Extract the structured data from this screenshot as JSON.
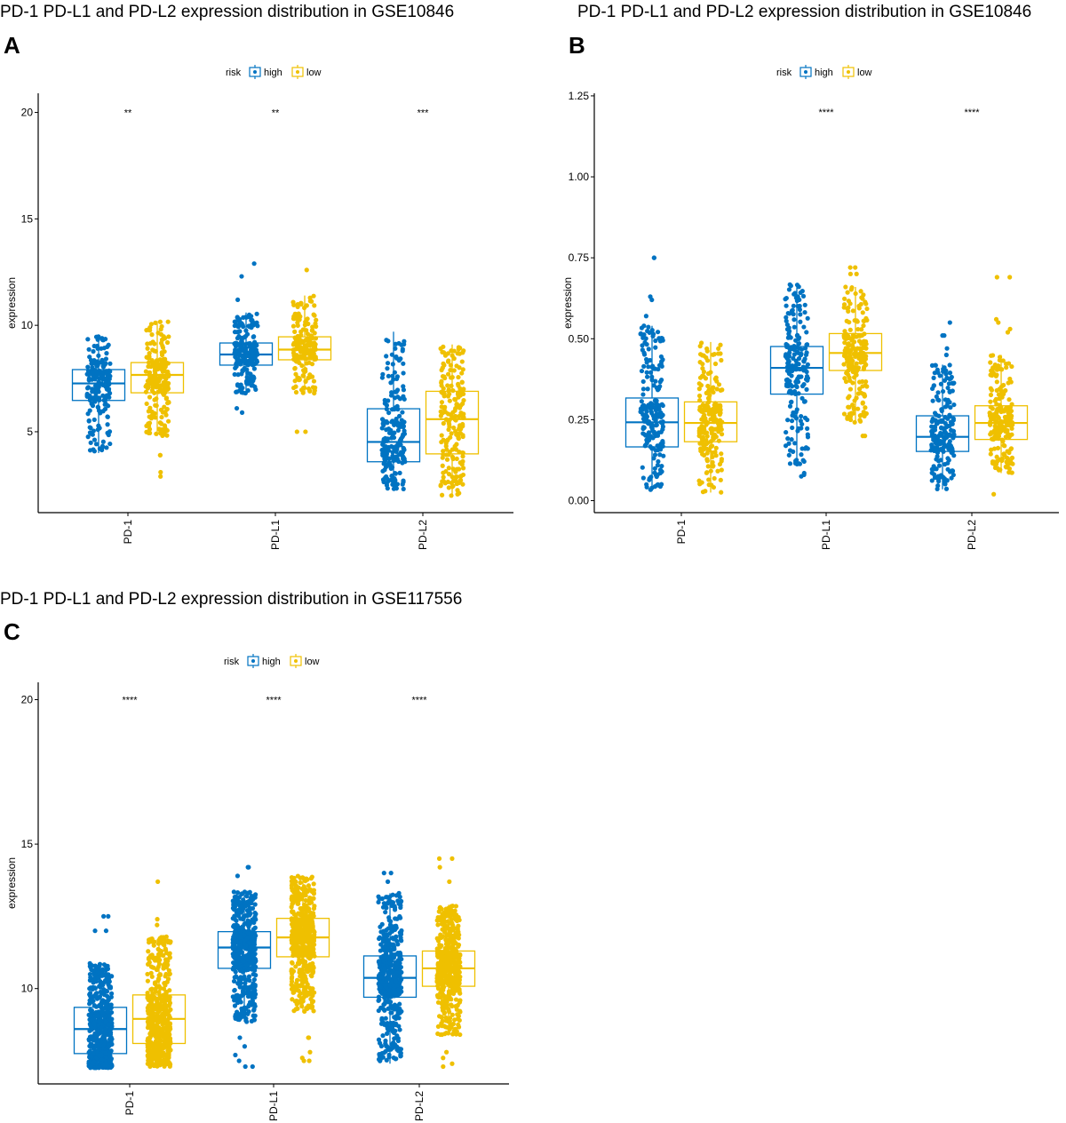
{
  "colors": {
    "high": "#0073C2",
    "low": "#EFC000",
    "axis": "#000000"
  },
  "legend": {
    "title": "risk",
    "entries": [
      "high",
      "low"
    ]
  },
  "chart_data": [
    {
      "panel_label": "A",
      "type": "box",
      "title": "PD-1 PD-L1 and PD-L2 expression distribution in GSE10846",
      "ylabel": "expression",
      "xlabel": "",
      "ylim": [
        1.2,
        20.9
      ],
      "yticks": [
        5,
        10,
        15,
        20
      ],
      "grid": false,
      "legend_position": "top",
      "categories": [
        "PD-1",
        "PD-L1",
        "PD-L2"
      ],
      "significance": [
        "**",
        "**",
        "***"
      ],
      "series": [
        {
          "name": "high",
          "boxes": [
            {
              "whisker_low": 4.0,
              "q1": 6.47,
              "median": 7.27,
              "q3": 7.92,
              "whisker_high": 9.5,
              "outliers": []
            },
            {
              "whisker_low": 6.8,
              "q1": 8.13,
              "median": 8.63,
              "q3": 9.17,
              "whisker_high": 10.6,
              "outliers": [
                12.9,
                12.3,
                11.2,
                6.1,
                5.9
              ]
            },
            {
              "whisker_low": 2.3,
              "q1": 3.59,
              "median": 4.52,
              "q3": 6.08,
              "whisker_high": 9.7,
              "outliers": []
            }
          ]
        },
        {
          "name": "low",
          "boxes": [
            {
              "whisker_low": 4.8,
              "q1": 6.83,
              "median": 7.67,
              "q3": 8.25,
              "whisker_high": 10.2,
              "outliers": [
                3.9,
                3.9,
                3.1,
                2.9
              ]
            },
            {
              "whisker_low": 6.8,
              "q1": 8.38,
              "median": 8.86,
              "q3": 9.46,
              "whisker_high": 11.4,
              "outliers": [
                12.6,
                5.0,
                5.0
              ]
            },
            {
              "whisker_low": 2.0,
              "q1": 3.96,
              "median": 5.59,
              "q3": 6.9,
              "whisker_high": 9.1,
              "outliers": []
            }
          ]
        }
      ]
    },
    {
      "panel_label": "B",
      "type": "box",
      "title": "PD-1 PD-L1 and PD-L2 expression distribution in GSE10846",
      "ylabel": "expression",
      "xlabel": "",
      "ylim": [
        -0.037,
        1.258
      ],
      "yticks": [
        "0.00",
        "0.25",
        "0.50",
        "0.75",
        "1.00",
        "1.25"
      ],
      "grid": false,
      "legend_position": "top",
      "categories": [
        "PD-1",
        "PD-L1",
        "PD-L2"
      ],
      "significance": [
        "",
        "****",
        "****"
      ],
      "series": [
        {
          "name": "high",
          "boxes": [
            {
              "whisker_low": 0.03,
              "q1": 0.166,
              "median": 0.242,
              "q3": 0.317,
              "whisker_high": 0.54,
              "outliers": [
                0.75,
                0.75,
                0.63,
                0.62,
                0.57
              ]
            },
            {
              "whisker_low": 0.11,
              "q1": 0.329,
              "median": 0.41,
              "q3": 0.476,
              "whisker_high": 0.67,
              "outliers": [
                0.08,
                0.075,
                0.085
              ]
            },
            {
              "whisker_low": 0.035,
              "q1": 0.152,
              "median": 0.197,
              "q3": 0.262,
              "whisker_high": 0.42,
              "outliers": [
                0.55,
                0.51,
                0.51,
                0.47,
                0.45
              ]
            }
          ]
        },
        {
          "name": "low",
          "boxes": [
            {
              "whisker_low": 0.025,
              "q1": 0.182,
              "median": 0.24,
              "q3": 0.305,
              "whisker_high": 0.49,
              "outliers": []
            },
            {
              "whisker_low": 0.24,
              "q1": 0.402,
              "median": 0.456,
              "q3": 0.516,
              "whisker_high": 0.66,
              "outliers": [
                0.72,
                0.72,
                0.7,
                0.7,
                0.2,
                0.2
              ]
            },
            {
              "whisker_low": 0.085,
              "q1": 0.189,
              "median": 0.24,
              "q3": 0.293,
              "whisker_high": 0.45,
              "outliers": [
                0.69,
                0.69,
                0.56,
                0.55,
                0.53,
                0.52,
                0.02
              ]
            }
          ]
        }
      ]
    },
    {
      "panel_label": "C",
      "type": "box",
      "title": "PD-1 PD-L1 and PD-L2 expression distribution in GSE117556",
      "ylabel": "expression",
      "xlabel": "",
      "ylim": [
        6.7,
        20.6
      ],
      "yticks": [
        10,
        15,
        20
      ],
      "grid": false,
      "legend_position": "top",
      "categories": [
        "PD-1",
        "PD-L1",
        "PD-L2"
      ],
      "significance": [
        "****",
        "****",
        "****"
      ],
      "series": [
        {
          "name": "high",
          "boxes": [
            {
              "whisker_low": 7.25,
              "q1": 7.75,
              "median": 8.6,
              "q3": 9.35,
              "whisker_high": 10.9,
              "outliers": [
                12.5,
                12.5,
                12.0,
                12.0
              ]
            },
            {
              "whisker_low": 8.85,
              "q1": 10.7,
              "median": 11.42,
              "q3": 11.97,
              "whisker_high": 13.4,
              "outliers": [
                14.2,
                14.2,
                13.9,
                8.3,
                8.0,
                7.7,
                7.5,
                7.3,
                7.3
              ]
            },
            {
              "whisker_low": 7.4,
              "q1": 9.7,
              "median": 10.37,
              "q3": 11.13,
              "whisker_high": 13.3,
              "outliers": [
                14.0,
                14.0,
                13.7
              ]
            }
          ]
        },
        {
          "name": "low",
          "boxes": [
            {
              "whisker_low": 7.3,
              "q1": 8.1,
              "median": 8.95,
              "q3": 9.78,
              "whisker_high": 11.8,
              "outliers": [
                13.7,
                12.4,
                12.2
              ]
            },
            {
              "whisker_low": 9.2,
              "q1": 11.1,
              "median": 11.77,
              "q3": 12.43,
              "whisker_high": 13.9,
              "outliers": [
                8.3,
                8.3,
                7.8,
                7.6,
                7.5,
                7.5
              ]
            },
            {
              "whisker_low": 8.4,
              "q1": 10.08,
              "median": 10.7,
              "q3": 11.3,
              "whisker_high": 12.9,
              "outliers": [
                14.5,
                14.5,
                14.2,
                13.7,
                7.8,
                7.6,
                7.4,
                7.3
              ]
            }
          ]
        }
      ]
    }
  ]
}
